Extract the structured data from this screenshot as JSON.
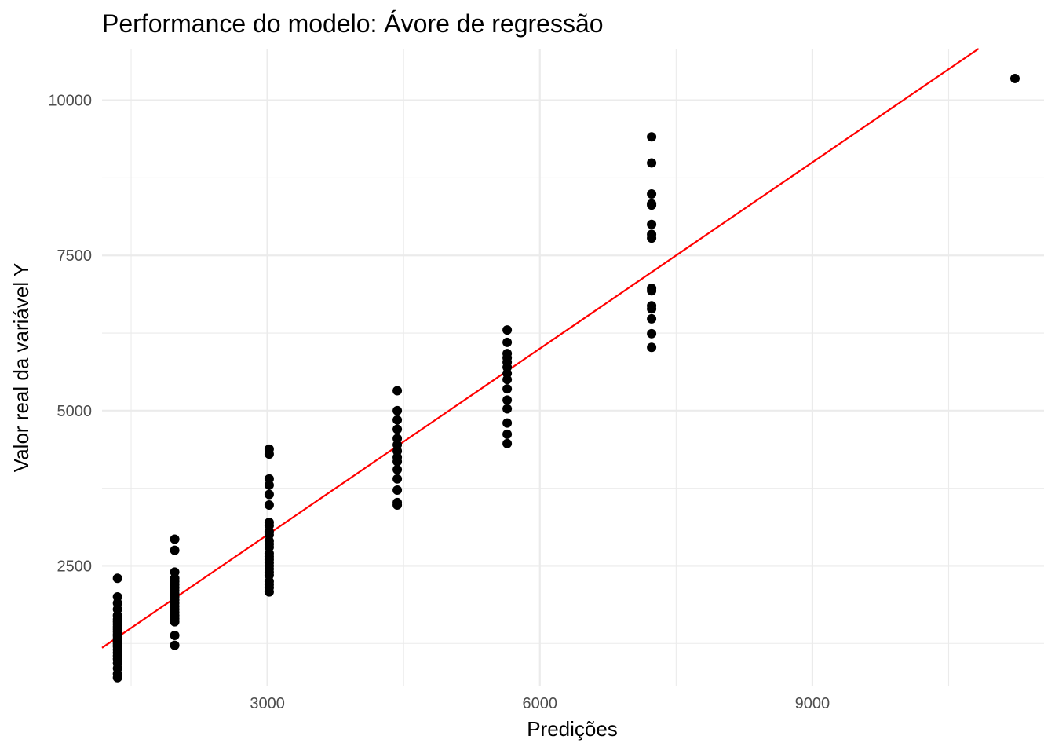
{
  "chart_data": {
    "type": "scatter",
    "title": "Performance do modelo: Ávore de regressão",
    "xlabel": "Predições",
    "ylabel": "Valor real da variável Y",
    "xlim": [
      1180,
      11550
    ],
    "ylim": [
      570,
      10830
    ],
    "x_ticks": [
      3000,
      6000,
      9000
    ],
    "x_tick_labels": [
      "3000",
      "6000",
      "9000"
    ],
    "y_ticks": [
      2500,
      5000,
      7500,
      10000
    ],
    "y_tick_labels": [
      "2500",
      "5000",
      "7500",
      "10000"
    ],
    "grid": true,
    "legend": "none",
    "colors": {
      "points": "#000000",
      "line": "#ff0000",
      "grid": "#ebebeb",
      "tick_text": "#4d4d4d"
    },
    "reference_line": {
      "slope": 1,
      "intercept": 0,
      "color": "#ff0000"
    },
    "series": [
      {
        "x": 1350,
        "values": [
          700,
          760,
          850,
          930,
          1000,
          1050,
          1100,
          1150,
          1200,
          1230,
          1260,
          1300,
          1330,
          1370,
          1400,
          1440,
          1480,
          1520,
          1560,
          1600,
          1640,
          1700,
          1800,
          1900,
          2000,
          2300
        ]
      },
      {
        "x": 1980,
        "values": [
          1220,
          1380,
          1600,
          1650,
          1700,
          1750,
          1800,
          1850,
          1900,
          1950,
          2000,
          2050,
          2100,
          2150,
          2200,
          2250,
          2300,
          2400,
          2750,
          2930
        ]
      },
      {
        "x": 3020,
        "values": [
          2080,
          2150,
          2200,
          2250,
          2350,
          2400,
          2450,
          2500,
          2550,
          2600,
          2650,
          2700,
          2800,
          2850,
          2900,
          3000,
          3050,
          3150,
          3200,
          3480,
          3650,
          3800,
          3900,
          4300,
          4380
        ]
      },
      {
        "x": 4430,
        "values": [
          3480,
          3520,
          3720,
          3900,
          4050,
          4180,
          4250,
          4350,
          4450,
          4550,
          4700,
          4850,
          5000,
          5320
        ]
      },
      {
        "x": 5640,
        "values": [
          4470,
          4620,
          4800,
          5030,
          5170,
          5350,
          5500,
          5600,
          5700,
          5780,
          5850,
          5920,
          6100,
          6300
        ]
      },
      {
        "x": 7230,
        "values": [
          6020,
          6240,
          6480,
          6640,
          6690,
          6930,
          6970,
          7780,
          7840,
          8000,
          8310,
          8330,
          8490,
          8990,
          9410
        ]
      },
      {
        "x": 11230,
        "values": [
          10350
        ]
      }
    ]
  }
}
